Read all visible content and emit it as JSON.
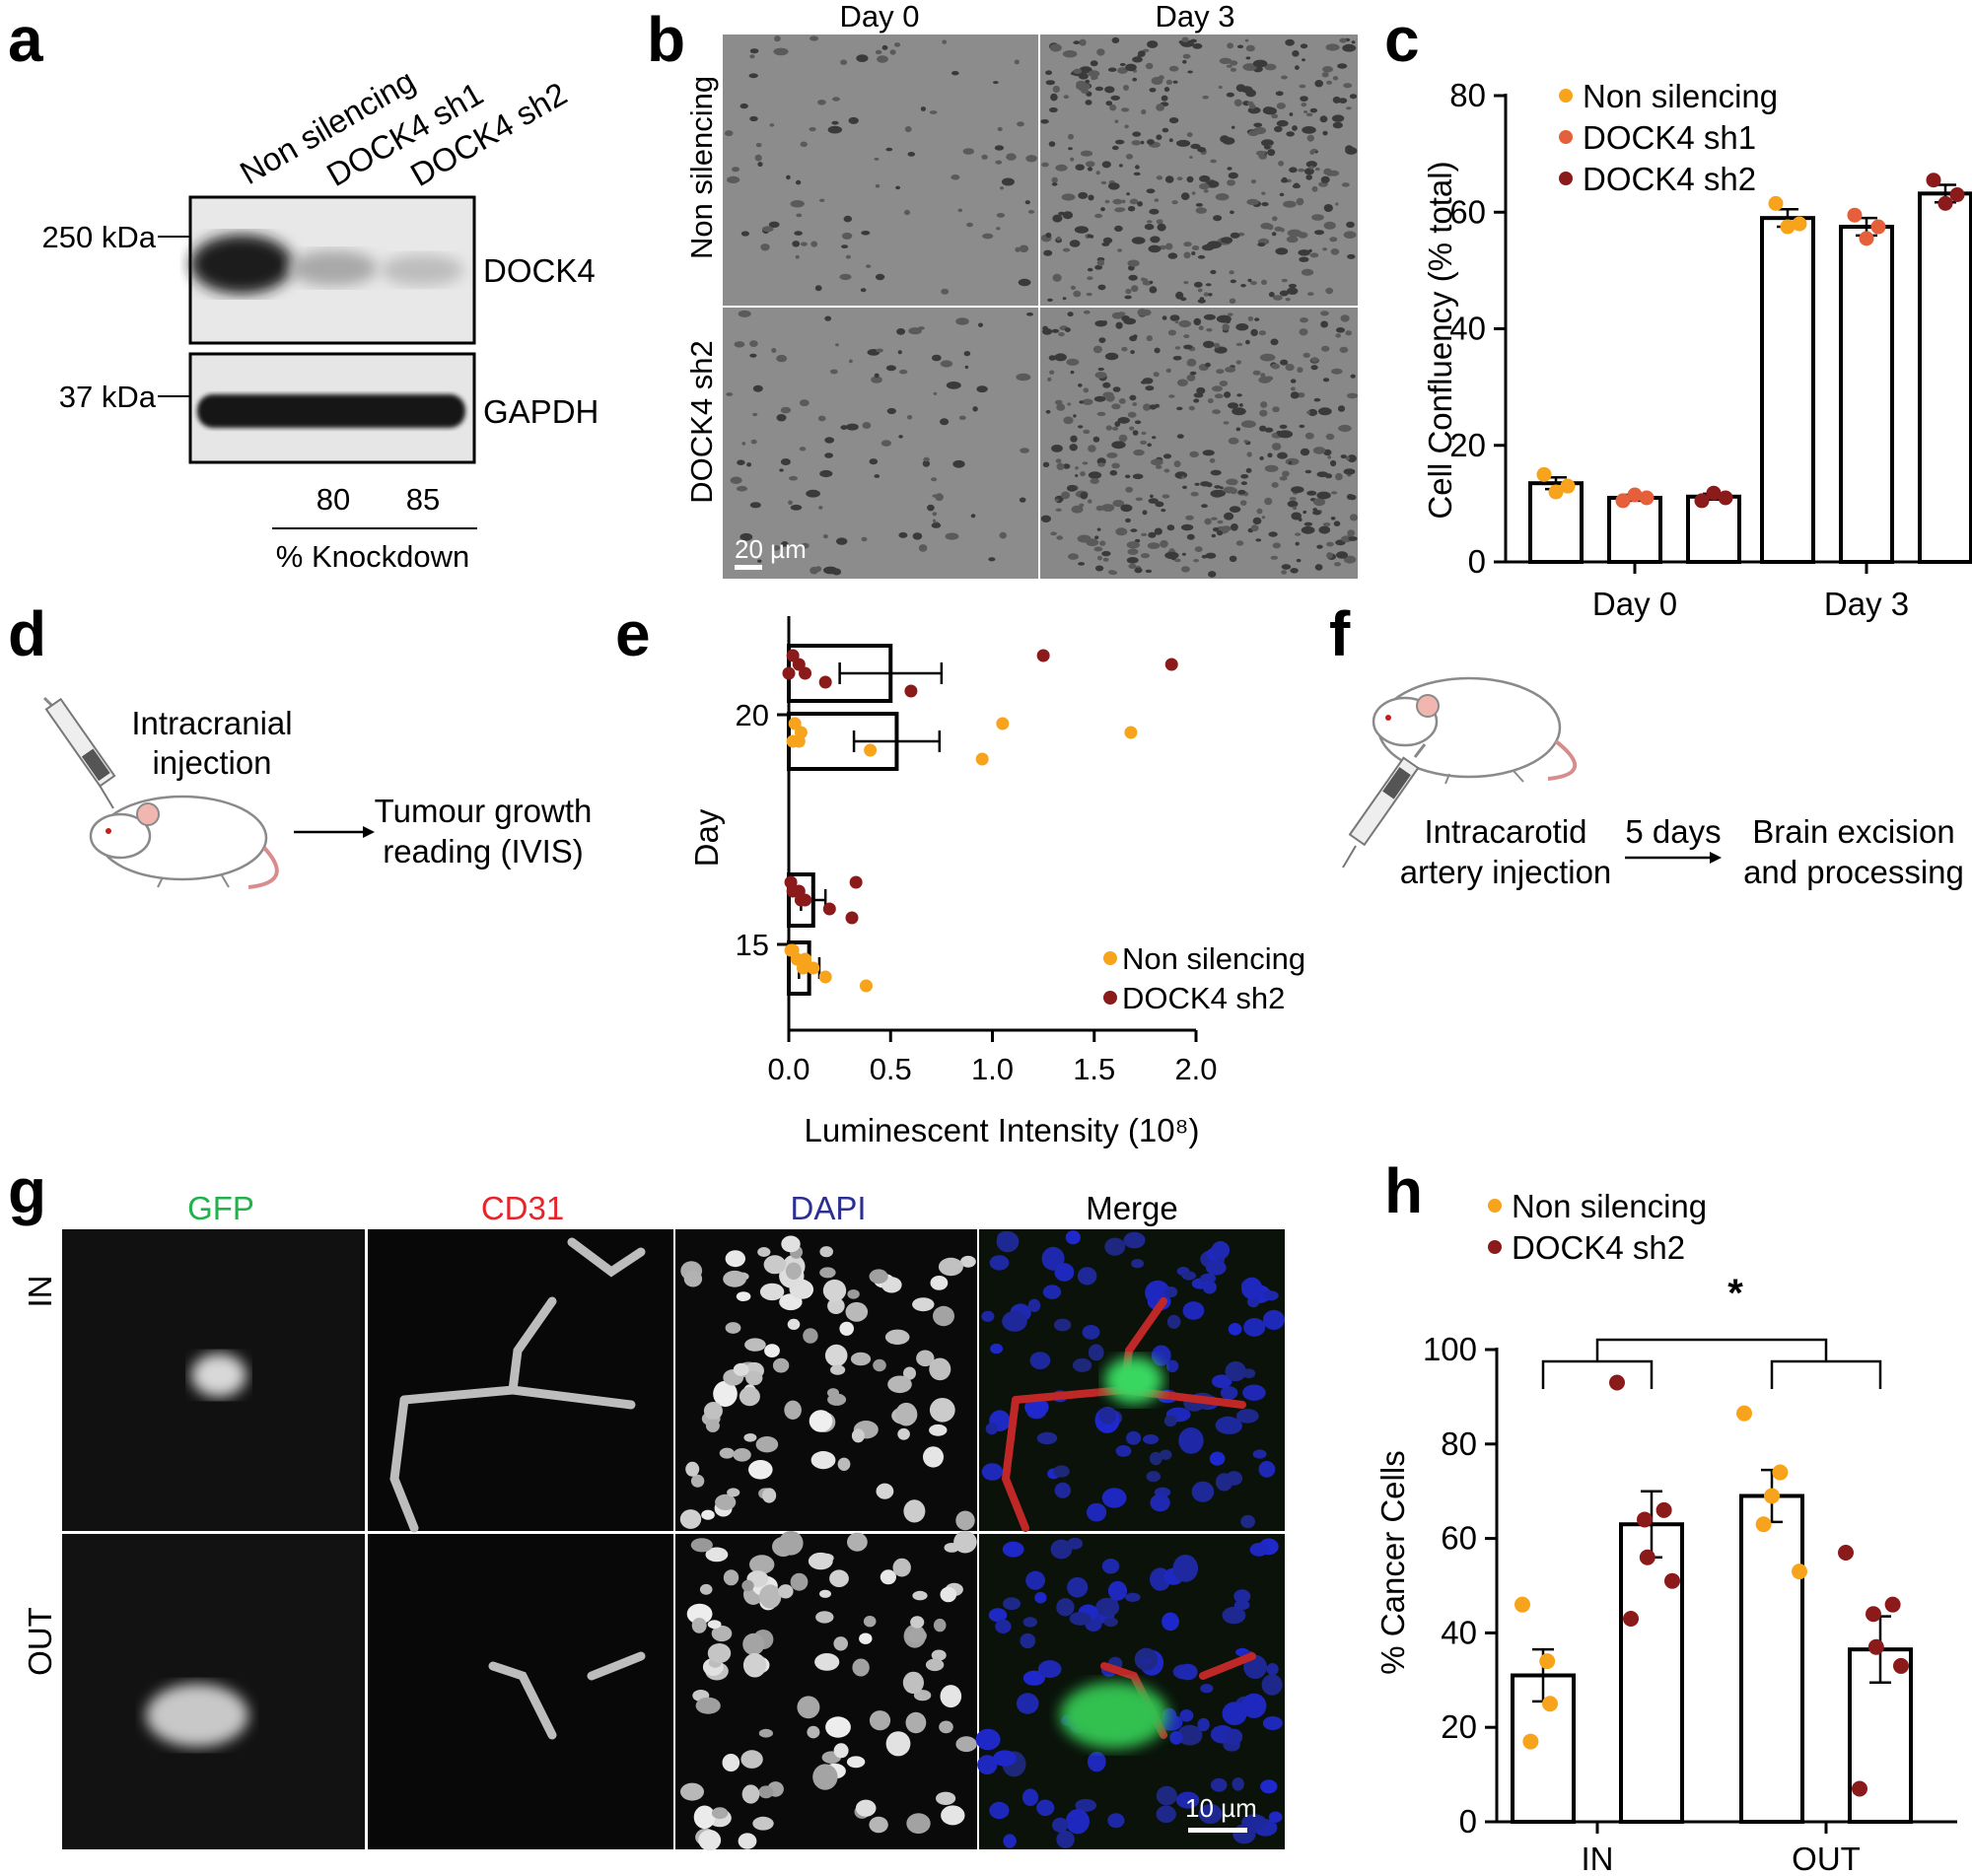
{
  "panels": {
    "a": "a",
    "b": "b",
    "c": "c",
    "d": "d",
    "e": "e",
    "f": "f",
    "g": "g",
    "h": "h"
  },
  "western": {
    "lanes": [
      "Non silencing",
      "DOCK4 sh1",
      "DOCK4 sh2"
    ],
    "markers": [
      "250 kDa",
      "37 kDa"
    ],
    "proteins": [
      "DOCK4",
      "GAPDH"
    ],
    "knockdown_values": [
      "80",
      "85"
    ],
    "knockdown_label": "% Knockdown"
  },
  "microscopy_b": {
    "columns": [
      "Day 0",
      "Day 3"
    ],
    "rows": [
      "Non silencing",
      "DOCK4 sh2"
    ],
    "scale_bar": "20 µm"
  },
  "diagram_d": {
    "injection": [
      "Intracranial",
      "injection"
    ],
    "outcome": [
      "Tumour growth",
      "reading (IVIS)"
    ]
  },
  "diagram_f": {
    "injection": [
      "Intracarotid",
      "artery injection"
    ],
    "interval": "5 days",
    "outcome": [
      "Brain excision",
      "and processing"
    ]
  },
  "microscopy_g": {
    "channels": [
      "GFP",
      "CD31",
      "DAPI",
      "Merge"
    ],
    "channel_colors": [
      "#22b24c",
      "#e8242a",
      "#2b2f92",
      "#000000"
    ],
    "rows": [
      "IN",
      "OUT"
    ],
    "scale_bar": "10 µm"
  },
  "colors": {
    "non_silencing": "#f7a31c",
    "dock4_sh1": "#e5603a",
    "dock4_sh2": "#8b1a1a"
  },
  "chart_data": [
    {
      "panel": "c",
      "type": "bar",
      "categories": [
        "Day 0",
        "Day 3"
      ],
      "ylabel": "Cell Confluency (% total)",
      "ylim": [
        0,
        80
      ],
      "yticks": [
        0,
        20,
        40,
        60,
        80
      ],
      "legend": "top-left",
      "series": [
        {
          "name": "Non silencing",
          "color": "#f7a31c",
          "values": [
            13.5,
            59.0
          ],
          "sem": [
            1.0,
            1.5
          ],
          "points": [
            [
              15.0,
              12.0,
              13.0
            ],
            [
              61.5,
              57.5,
              58.0
            ]
          ]
        },
        {
          "name": "DOCK4 sh1",
          "color": "#e5603a",
          "values": [
            11.0,
            57.5
          ],
          "sem": [
            0.5,
            1.5
          ],
          "points": [
            [
              10.5,
              11.5,
              11.0
            ],
            [
              59.5,
              55.5,
              57.5
            ]
          ]
        },
        {
          "name": "DOCK4 sh2",
          "color": "#8b1a1a",
          "values": [
            11.2,
            63.2
          ],
          "sem": [
            0.5,
            1.5
          ],
          "points": [
            [
              10.5,
              11.8,
              11.0
            ],
            [
              65.5,
              61.5,
              63.0
            ]
          ]
        }
      ]
    },
    {
      "panel": "e",
      "type": "bar",
      "orientation": "horizontal",
      "ylabel": "Day",
      "xlabel": "Luminescent Intensity (10⁸)",
      "xlim": [
        0,
        2.0
      ],
      "xticks": [
        "0.0",
        "0.5",
        "1.0",
        "1.5",
        "2.0"
      ],
      "yticks": [
        15,
        20
      ],
      "legend": "bottom-right",
      "groups": [
        {
          "name": "DOCK4 sh2",
          "day": 21,
          "color": "#8b1a1a",
          "value": 0.5,
          "sem": 0.25,
          "points": [
            0.02,
            0.05,
            0.08,
            0.18,
            0.6,
            1.25,
            1.88,
            0.0
          ]
        },
        {
          "name": "Non silencing",
          "day": 20,
          "color": "#f7a31c",
          "value": 0.53,
          "sem": 0.21,
          "points": [
            0.03,
            0.06,
            0.05,
            0.4,
            0.95,
            1.05,
            1.68,
            0.02
          ]
        },
        {
          "name": "DOCK4 sh2",
          "day": 15,
          "color": "#8b1a1a",
          "value": 0.12,
          "sem": 0.06,
          "points": [
            0.01,
            0.05,
            0.08,
            0.2,
            0.31,
            0.33,
            0.02,
            0.06
          ]
        },
        {
          "name": "Non silencing",
          "day": 14,
          "color": "#f7a31c",
          "value": 0.1,
          "sem": 0.05,
          "points": [
            0.01,
            0.04,
            0.07,
            0.18,
            0.38,
            0.02,
            0.08,
            0.12
          ]
        }
      ]
    },
    {
      "panel": "h",
      "type": "bar",
      "categories": [
        "IN",
        "OUT"
      ],
      "ylabel": "% Cancer Cells",
      "ylim": [
        0,
        100
      ],
      "yticks": [
        0,
        20,
        40,
        60,
        80,
        100
      ],
      "legend": "top-left",
      "significance": "*",
      "series": [
        {
          "name": "Non silencing",
          "color": "#f7a31c",
          "values": [
            31,
            69
          ],
          "sem": [
            5.5,
            5.5
          ],
          "points": [
            [
              46,
              34,
              25,
              17
            ],
            [
              86.5,
              74,
              69,
              63,
              53
            ]
          ]
        },
        {
          "name": "DOCK4 sh2",
          "color": "#8b1a1a",
          "values": [
            63,
            36.5
          ],
          "sem": [
            7,
            7
          ],
          "points": [
            [
              93,
              66,
              64,
              56,
              51,
              43
            ],
            [
              57,
              46,
              44,
              37,
              33,
              7
            ]
          ]
        }
      ]
    }
  ]
}
